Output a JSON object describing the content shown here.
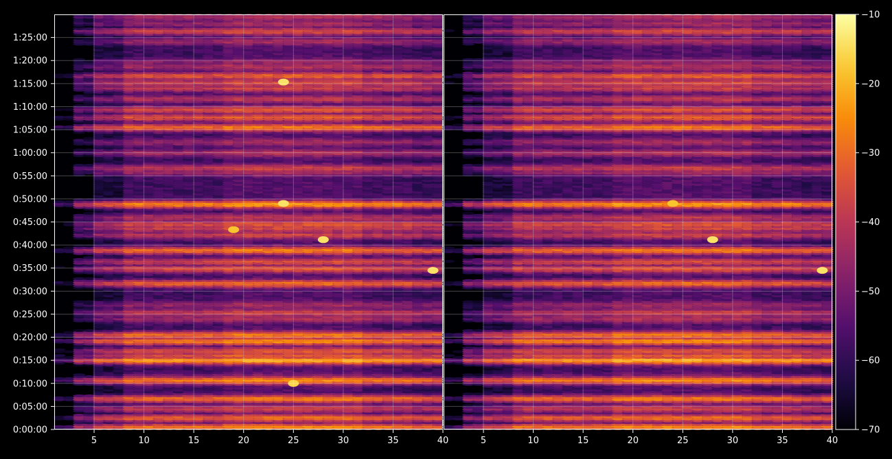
{
  "chart_data": {
    "type": "heatmap",
    "title": "",
    "colormap": "inferno",
    "background": "#000000",
    "grid": true,
    "panels": [
      {
        "xlim": [
          1,
          40
        ],
        "x_ticks": [
          5,
          10,
          15,
          20,
          25,
          30,
          35,
          40
        ],
        "x_tick_labels": [
          "5",
          "10",
          "15",
          "20",
          "25",
          "30",
          "35",
          "40"
        ]
      },
      {
        "xlim": [
          1,
          40
        ],
        "x_ticks": [
          5,
          10,
          15,
          20,
          25,
          30,
          35,
          40
        ],
        "x_tick_labels": [
          "5",
          "10",
          "15",
          "20",
          "25",
          "30",
          "35",
          "40"
        ]
      }
    ],
    "y_axis": {
      "unit": "seconds",
      "ylim": [
        0,
        5400
      ],
      "ticks": [
        0,
        300,
        600,
        900,
        1200,
        1500,
        1800,
        2100,
        2400,
        2700,
        3000,
        3300,
        3600,
        3900,
        4200,
        4500,
        4800,
        5100
      ],
      "tick_labels": [
        "0:00:00",
        "0:05:00",
        "0:10:00",
        "0:15:00",
        "0:20:00",
        "0:25:00",
        "0:30:00",
        "0:35:00",
        "0:40:00",
        "0:45:00",
        "0:50:00",
        "0:55:00",
        "1:00:00",
        "1:05:00",
        "1:10:00",
        "1:15:00",
        "1:20:00",
        "1:25:00"
      ]
    },
    "colorbar": {
      "range": [
        -70,
        -10
      ],
      "ticks": [
        -10,
        -20,
        -30,
        -40,
        -50,
        -60,
        -70
      ],
      "tick_labels": [
        "−10",
        "−20",
        "−30",
        "−40",
        "−50",
        "−60",
        "−70"
      ]
    },
    "bands": [
      {
        "t": 30,
        "level": -28
      },
      {
        "t": 150,
        "level": -32
      },
      {
        "t": 270,
        "level": -40
      },
      {
        "t": 400,
        "level": -30
      },
      {
        "t": 640,
        "level": -28
      },
      {
        "t": 690,
        "level": -50
      },
      {
        "t": 900,
        "level": -24
      },
      {
        "t": 960,
        "level": -35
      },
      {
        "t": 1020,
        "level": -36
      },
      {
        "t": 1150,
        "level": -28
      },
      {
        "t": 1230,
        "level": -30
      },
      {
        "t": 1440,
        "level": -44
      },
      {
        "t": 1520,
        "level": -40
      },
      {
        "t": 1620,
        "level": -46
      },
      {
        "t": 1900,
        "level": -32
      },
      {
        "t": 2090,
        "level": -36
      },
      {
        "t": 2180,
        "level": -38
      },
      {
        "t": 2330,
        "level": -30
      },
      {
        "t": 2530,
        "level": -40
      },
      {
        "t": 2620,
        "level": -38
      },
      {
        "t": 2670,
        "level": -36
      },
      {
        "t": 2760,
        "level": -42
      },
      {
        "t": 2930,
        "level": -26
      },
      {
        "t": 3350,
        "level": -46
      },
      {
        "t": 3400,
        "level": -40
      },
      {
        "t": 3600,
        "level": -44
      },
      {
        "t": 3740,
        "level": -46
      },
      {
        "t": 3930,
        "level": -30
      },
      {
        "t": 4060,
        "level": -34
      },
      {
        "t": 4160,
        "level": -36
      },
      {
        "t": 4300,
        "level": -42
      },
      {
        "t": 4440,
        "level": -40
      },
      {
        "t": 4510,
        "level": -38
      },
      {
        "t": 4600,
        "level": -34
      },
      {
        "t": 4720,
        "level": -44
      },
      {
        "t": 4780,
        "level": -48
      },
      {
        "t": 5050,
        "level": -46
      },
      {
        "t": 5180,
        "level": -38
      },
      {
        "t": 5280,
        "level": -46
      },
      {
        "t": 5370,
        "level": -44
      }
    ],
    "hotspots": [
      {
        "panel": 0,
        "x": 28,
        "t": 2470,
        "level": -14
      },
      {
        "panel": 1,
        "x": 28,
        "t": 2470,
        "level": -14
      },
      {
        "panel": 0,
        "x": 39,
        "t": 2070,
        "level": -14
      },
      {
        "panel": 1,
        "x": 39,
        "t": 2070,
        "level": -14
      },
      {
        "panel": 0,
        "x": 24,
        "t": 2940,
        "level": -14
      },
      {
        "panel": 1,
        "x": 24,
        "t": 2940,
        "level": -18
      },
      {
        "panel": 0,
        "x": 24,
        "t": 4520,
        "level": -14
      },
      {
        "panel": 0,
        "x": 25,
        "t": 600,
        "level": -16
      },
      {
        "panel": 0,
        "x": 19,
        "t": 2600,
        "level": -18
      }
    ]
  }
}
